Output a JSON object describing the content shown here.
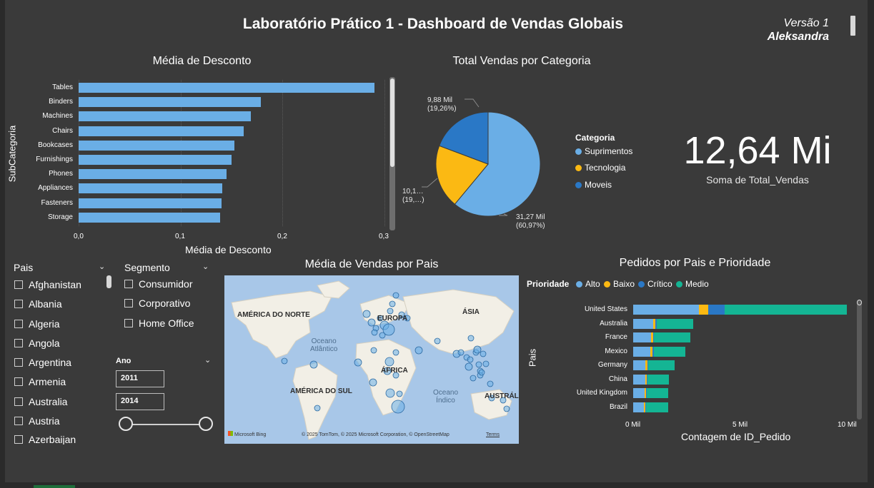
{
  "header": {
    "title": "Laboratório Prático 1 - Dashboard de Vendas Globais",
    "version": "Versão 1",
    "author": "Aleksandra"
  },
  "colors": {
    "background": "#3a3a3a",
    "bar_blue": "#6aaee6",
    "suprimentos": "#6aaee6",
    "tecnologia": "#fbb913",
    "moveis": "#2a78c6",
    "medio": "#14b594"
  },
  "discount_chart": {
    "title": "Média de Desconto",
    "y_axis_title": "SubCategoria",
    "x_axis_title": "Média de Desconto",
    "x_ticks": [
      "0,0",
      "0,1",
      "0,2",
      "0,3"
    ]
  },
  "category_chart": {
    "title": "Total Vendas por Categoria",
    "legend_title": "Categoria",
    "labels": [
      {
        "value": "9,88 Mil",
        "pct": "(19,26%)"
      },
      {
        "value": "10,1…",
        "pct": "(19,…)"
      },
      {
        "value": "31,27 Mil",
        "pct": "(60,97%)"
      }
    ]
  },
  "kpi": {
    "value": "12,64 Mi",
    "label": "Soma de Total_Vendas"
  },
  "pais_slicer": {
    "header": "Pais",
    "items": [
      "Afghanistan",
      "Albania",
      "Algeria",
      "Angola",
      "Argentina",
      "Armenia",
      "Australia",
      "Austria",
      "Azerbaijan"
    ]
  },
  "segmento_slicer": {
    "header": "Segmento",
    "items": [
      "Consumidor",
      "Corporativo",
      "Home Office"
    ]
  },
  "ano_slicer": {
    "header": "Ano",
    "from": "2011",
    "to": "2014"
  },
  "map": {
    "title": "Média de Vendas por Pais",
    "labels": {
      "north_america": "AMÉRICA DO NORTE",
      "europe": "EUROPA",
      "asia": "ÁSIA",
      "africa": "ÁFRICA",
      "south_america": "AMÉRICA DO SUL",
      "australia": "AUSTRÁL",
      "atlantic_1": "Oceano",
      "atlantic_2": "Atlântico",
      "indian_1": "Oceano",
      "indian_2": "Índico"
    },
    "credit_logo": "Microsoft Bing",
    "credit_text": "© 2025 TomTom, © 2025 Microsoft Corporation, © OpenStreetMap",
    "credit_terms": "Terms"
  },
  "orders_chart": {
    "title": "Pedidos por Pais e Prioridade",
    "legend_title": "Prioridade",
    "legend": [
      "Alto",
      "Baixo",
      "Crítico",
      "Medio"
    ],
    "y_axis_title": "Pais",
    "x_axis_title": "Contagem de ID_Pedido",
    "x_ticks": [
      "0 Mil",
      "5 Mil",
      "10 Mil"
    ]
  },
  "chart_data": [
    {
      "type": "bar",
      "title": "Média de Desconto",
      "xlabel": "Média de Desconto",
      "ylabel": "SubCategoria",
      "categories": [
        "Tables",
        "Binders",
        "Machines",
        "Chairs",
        "Bookcases",
        "Furnishings",
        "Phones",
        "Appliances",
        "Fasteners",
        "Storage"
      ],
      "values": [
        0.29,
        0.179,
        0.169,
        0.162,
        0.153,
        0.15,
        0.145,
        0.141,
        0.14,
        0.139
      ],
      "xlim": [
        0,
        0.3
      ]
    },
    {
      "type": "pie",
      "title": "Total Vendas por Categoria",
      "categories": [
        "Suprimentos",
        "Tecnologia",
        "Moveis"
      ],
      "values": [
        31.27,
        10.1,
        9.88
      ],
      "unit": "Mil",
      "percents": [
        60.97,
        19.77,
        19.26
      ]
    },
    {
      "type": "bar",
      "stacked": true,
      "orientation": "horizontal",
      "title": "Pedidos por Pais e Prioridade",
      "xlabel": "Contagem de ID_Pedido",
      "ylabel": "Pais",
      "categories": [
        "United States",
        "Australia",
        "France",
        "Mexico",
        "Germany",
        "China",
        "United Kingdom",
        "Brazil"
      ],
      "series": [
        {
          "name": "Alto",
          "values": [
            3080,
            930,
            820,
            800,
            580,
            560,
            530,
            500
          ]
        },
        {
          "name": "Baixo",
          "values": [
            420,
            110,
            100,
            100,
            80,
            80,
            70,
            60
          ]
        },
        {
          "name": "Crítico",
          "values": [
            780,
            60,
            60,
            60,
            40,
            40,
            30,
            30
          ]
        },
        {
          "name": "Medio",
          "values": [
            5700,
            1700,
            1690,
            1490,
            1250,
            990,
            1000,
            1040
          ]
        }
      ],
      "xlim": [
        0,
        10000
      ]
    }
  ]
}
